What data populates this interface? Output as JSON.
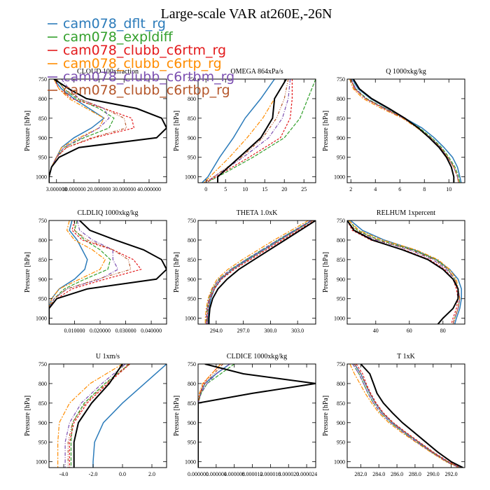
{
  "title": "Large-scale VAR at260E,-26N",
  "series": [
    {
      "name": "cam078_dflt_rg",
      "color": "#2b7bba"
    },
    {
      "name": "cam078_expldiff",
      "color": "#33a02c"
    },
    {
      "name": "cam078_clubb_c6rtm_rg",
      "color": "#e31a1c"
    },
    {
      "name": "cam078_clubb_c6rtp_rg",
      "color": "#ff8c00"
    },
    {
      "name": "cam078_clubb_c6rtbm_rg",
      "color": "#7b4fb0"
    },
    {
      "name": "cam078_clubb_c6rtbp_rg",
      "color": "#b5562a"
    },
    {
      "name": "",
      "color": "#000000"
    }
  ],
  "chart_data": [
    {
      "type": "line",
      "title": "CLOUD 100xfraction",
      "ylabel": "Pressure [hPa]",
      "xlim": [
        0.0,
        0.47
      ],
      "ylim": [
        1015,
        750
      ],
      "xticks": [
        0.03,
        0.1,
        0.2,
        0.3,
        0.4
      ],
      "xticklabels": [
        "3.000000",
        "10.000000",
        "20.000000",
        "30.000000",
        "40.000000"
      ],
      "yticks": [
        750,
        800,
        850,
        900,
        950,
        1000
      ],
      "p": [
        750,
        775,
        800,
        825,
        850,
        875,
        900,
        925,
        950,
        975,
        1000,
        1015
      ],
      "series": [
        [
          0.02,
          0.05,
          0.1,
          0.16,
          0.22,
          0.17,
          0.1,
          0.05,
          0.03,
          0.01,
          0.0,
          0.0
        ],
        [
          0.03,
          0.06,
          0.11,
          0.2,
          0.26,
          0.24,
          0.14,
          0.06,
          0.03,
          0.01,
          0.0,
          0.0
        ],
        [
          0.02,
          0.04,
          0.09,
          0.22,
          0.33,
          0.34,
          0.18,
          0.07,
          0.03,
          0.01,
          0.0,
          0.0
        ],
        [
          0.02,
          0.04,
          0.08,
          0.15,
          0.22,
          0.2,
          0.12,
          0.05,
          0.03,
          0.01,
          0.0,
          0.0
        ],
        [
          0.05,
          0.08,
          0.12,
          0.22,
          0.24,
          0.2,
          0.13,
          0.06,
          0.03,
          0.01,
          0.0,
          0.0
        ],
        [
          0.03,
          0.06,
          0.12,
          0.22,
          0.3,
          0.31,
          0.17,
          0.07,
          0.03,
          0.01,
          0.0,
          0.0
        ],
        [
          0.02,
          0.08,
          0.15,
          0.35,
          0.45,
          0.47,
          0.43,
          0.12,
          0.04,
          0.01,
          0.0,
          0.0
        ]
      ]
    },
    {
      "type": "line",
      "title": "OMEGA  864xPa/s",
      "ylabel": "Pressure [hPa]",
      "xlim": [
        -2,
        28
      ],
      "ylim": [
        1015,
        750
      ],
      "xticks": [
        0,
        5,
        10,
        15,
        20,
        25
      ],
      "xticklabels": [
        "0",
        "5",
        "10",
        "15",
        "20",
        "25"
      ],
      "yticks": [
        750,
        800,
        850,
        900,
        950,
        1000
      ],
      "p": [
        750,
        800,
        850,
        900,
        950,
        1000,
        1015
      ],
      "series": [
        [
          17.5,
          14.0,
          10.0,
          7.0,
          3.5,
          0.5,
          -1.0
        ],
        [
          28.0,
          26.0,
          24.0,
          20.0,
          12.0,
          3.0,
          0.0
        ],
        [
          22.0,
          22.0,
          21.5,
          19.0,
          11.0,
          2.5,
          0.0
        ],
        [
          20.5,
          17.5,
          14.5,
          10.5,
          6.0,
          1.0,
          -0.5
        ],
        [
          21.5,
          21.0,
          19.5,
          16.0,
          9.5,
          2.0,
          0.0
        ],
        [
          21.0,
          20.0,
          18.0,
          14.5,
          9.0,
          2.0,
          -0.5
        ],
        [
          20.5,
          17.5,
          17.0,
          14.0,
          8.5,
          3.0,
          3.0
        ]
      ]
    },
    {
      "type": "line",
      "title": "Q  1000xkg/kg",
      "ylabel": "Pressure [hPa]",
      "xlim": [
        1.7,
        11.3
      ],
      "ylim": [
        1015,
        750
      ],
      "xticks": [
        2,
        4,
        6,
        8,
        10
      ],
      "xticklabels": [
        "2",
        "4",
        "6",
        "8",
        "10"
      ],
      "yticks": [
        750,
        800,
        850,
        900,
        950,
        1000
      ],
      "p": [
        750,
        775,
        800,
        825,
        850,
        875,
        900,
        925,
        950,
        975,
        1000,
        1015
      ],
      "series": [
        [
          2.1,
          2.6,
          3.6,
          5.0,
          6.4,
          7.8,
          8.8,
          9.6,
          10.3,
          10.7,
          10.9,
          11.0
        ],
        [
          2.0,
          2.4,
          3.3,
          4.8,
          6.4,
          7.6,
          8.6,
          9.4,
          10.0,
          10.5,
          10.8,
          10.9
        ],
        [
          2.0,
          2.3,
          3.2,
          4.7,
          6.3,
          7.5,
          8.5,
          9.3,
          9.9,
          10.4,
          10.7,
          10.8
        ],
        [
          1.9,
          2.2,
          3.0,
          4.5,
          6.2,
          7.4,
          8.4,
          9.2,
          9.9,
          10.4,
          10.7,
          10.8
        ],
        [
          2.0,
          2.4,
          3.2,
          4.7,
          6.3,
          7.5,
          8.5,
          9.3,
          9.9,
          10.4,
          10.7,
          10.8
        ],
        [
          2.0,
          2.3,
          3.2,
          4.8,
          6.3,
          7.5,
          8.5,
          9.3,
          9.9,
          10.4,
          10.7,
          10.8
        ],
        [
          2.2,
          2.7,
          3.7,
          5.1,
          6.4,
          7.5,
          8.4,
          9.2,
          9.8,
          10.2,
          10.4,
          10.4
        ]
      ]
    },
    {
      "type": "line",
      "title": "CLDLIQ  1000xkg/kg",
      "ylabel": "Pressure [hPa]",
      "xlim": [
        0.0,
        0.046
      ],
      "ylim": [
        1015,
        750
      ],
      "xticks": [
        0.01,
        0.02,
        0.03,
        0.04
      ],
      "xticklabels": [
        "0.010000",
        "0.020000",
        "0.030000",
        "0.040000"
      ],
      "yticks": [
        750,
        800,
        850,
        900,
        950,
        1000
      ],
      "p": [
        750,
        775,
        800,
        825,
        850,
        875,
        900,
        925,
        950,
        975,
        1000,
        1015
      ],
      "series": [
        [
          0.009,
          0.008,
          0.011,
          0.013,
          0.015,
          0.014,
          0.01,
          0.004,
          0.001,
          0.0,
          0.0,
          0.0
        ],
        [
          0.011,
          0.01,
          0.014,
          0.02,
          0.024,
          0.023,
          0.014,
          0.006,
          0.002,
          0.0,
          0.0,
          0.0
        ],
        [
          0.01,
          0.009,
          0.013,
          0.025,
          0.033,
          0.036,
          0.022,
          0.009,
          0.003,
          0.0,
          0.0,
          0.0
        ],
        [
          0.008,
          0.007,
          0.01,
          0.017,
          0.022,
          0.02,
          0.012,
          0.004,
          0.001,
          0.0,
          0.0,
          0.0
        ],
        [
          0.011,
          0.012,
          0.017,
          0.025,
          0.025,
          0.027,
          0.02,
          0.007,
          0.002,
          0.0,
          0.0,
          0.0
        ],
        [
          0.01,
          0.01,
          0.015,
          0.025,
          0.031,
          0.032,
          0.019,
          0.007,
          0.002,
          0.0,
          0.0,
          0.0
        ],
        [
          0.012,
          0.016,
          0.026,
          0.037,
          0.044,
          0.046,
          0.042,
          0.015,
          0.003,
          0.0,
          0.0,
          0.0
        ]
      ]
    },
    {
      "type": "line",
      "title": "THETA  1.0xK",
      "ylabel": "Pressure [hPa]",
      "xlim": [
        292.0,
        305.0
      ],
      "ylim": [
        1015,
        750
      ],
      "xticks": [
        294.0,
        297.0,
        300.0,
        303.0
      ],
      "xticklabels": [
        "294.0",
        "297.0",
        "300.0",
        "303.0"
      ],
      "yticks": [
        750,
        800,
        850,
        900,
        950,
        1000
      ],
      "p": [
        750,
        800,
        850,
        875,
        900,
        925,
        950,
        975,
        1000,
        1015
      ],
      "series": [
        [
          304.6,
          301.0,
          297.5,
          295.8,
          294.5,
          293.8,
          293.4,
          293.2,
          293.1,
          293.1
        ],
        [
          304.5,
          300.8,
          297.3,
          295.6,
          294.3,
          293.6,
          293.2,
          293.0,
          292.9,
          292.9
        ],
        [
          304.9,
          301.3,
          297.8,
          296.0,
          294.6,
          293.8,
          293.3,
          293.1,
          293.0,
          293.0
        ],
        [
          304.2,
          300.4,
          296.9,
          295.3,
          294.1,
          293.5,
          293.1,
          292.9,
          292.8,
          292.8
        ],
        [
          304.5,
          300.8,
          297.3,
          295.6,
          294.3,
          293.6,
          293.2,
          293.0,
          292.9,
          292.9
        ],
        [
          304.7,
          301.1,
          297.6,
          295.8,
          294.4,
          293.7,
          293.3,
          293.1,
          293.0,
          293.0
        ],
        [
          305.0,
          301.6,
          298.2,
          296.5,
          295.2,
          294.2,
          293.6,
          293.3,
          293.2,
          293.2
        ]
      ]
    },
    {
      "type": "line",
      "title": "RELHUM  1xpercent",
      "ylabel": "Pressure [hPa]",
      "xlim": [
        23,
        93
      ],
      "ylim": [
        1015,
        750
      ],
      "xticks": [
        40,
        60,
        80
      ],
      "xticklabels": [
        "40",
        "60",
        "80"
      ],
      "yticks": [
        750,
        800,
        850,
        900,
        950,
        1000
      ],
      "p": [
        750,
        775,
        800,
        825,
        850,
        875,
        900,
        925,
        950,
        975,
        1000,
        1015
      ],
      "series": [
        [
          25,
          32,
          45,
          63,
          76,
          84,
          89,
          91,
          91,
          90,
          88,
          87
        ],
        [
          24,
          29,
          42,
          62,
          76,
          83,
          87,
          89,
          90,
          89,
          87,
          86
        ],
        [
          23,
          26,
          37,
          57,
          72,
          81,
          86,
          88,
          89,
          88,
          86,
          85
        ],
        [
          24,
          30,
          44,
          64,
          77,
          84,
          88,
          89,
          90,
          89,
          87,
          86
        ],
        [
          23,
          27,
          40,
          60,
          74,
          82,
          87,
          89,
          90,
          89,
          87,
          86
        ],
        [
          23,
          28,
          41,
          61,
          75,
          83,
          87,
          89,
          90,
          89,
          87,
          86
        ],
        [
          23,
          27,
          38,
          56,
          71,
          80,
          86,
          89,
          89,
          86,
          80,
          77
        ]
      ]
    },
    {
      "type": "line",
      "title": "U  1xm/s",
      "ylabel": "Pressure [hPa]",
      "xlim": [
        -5.0,
        3.0
      ],
      "ylim": [
        1015,
        750
      ],
      "xticks": [
        -4.0,
        -2.0,
        0.0,
        2.0
      ],
      "xticklabels": [
        "-4.0",
        "-2.0",
        "0.0",
        "2.0"
      ],
      "yticks": [
        750,
        800,
        850,
        900,
        950,
        1000
      ],
      "p": [
        750,
        800,
        850,
        900,
        950,
        1000,
        1015
      ],
      "series": [
        [
          3.0,
          1.5,
          0.0,
          -1.3,
          -1.9,
          -2.0,
          -2.0
        ],
        [
          0.5,
          -1.2,
          -2.6,
          -3.4,
          -3.5,
          -3.5,
          -3.5
        ],
        [
          0.5,
          -1.0,
          -2.4,
          -3.3,
          -3.6,
          -3.6,
          -3.6
        ],
        [
          0.0,
          -2.2,
          -3.6,
          -4.3,
          -4.4,
          -4.4,
          -4.4
        ],
        [
          0.2,
          -1.4,
          -2.8,
          -3.6,
          -3.9,
          -3.9,
          -3.9
        ],
        [
          0.4,
          -1.1,
          -2.5,
          -3.4,
          -3.7,
          -3.7,
          -3.7
        ],
        [
          0.0,
          -0.9,
          -2.1,
          -3.0,
          -3.3,
          -3.3,
          -3.3
        ]
      ]
    },
    {
      "type": "line",
      "title": "CLDICE  1000xkg/kg",
      "ylabel": "Pressure [hPa]",
      "xlim": [
        0.0,
        2.6e-05
      ],
      "ylim": [
        1015,
        750
      ],
      "xticks": [
        0.0,
        4e-06,
        8e-06,
        1.2e-05,
        1.6e-05,
        2e-05,
        2.4e-05
      ],
      "xticklabels": [
        "0.000000",
        "0.000004",
        "0.000008",
        "0.000012",
        "0.000016",
        "0.000020",
        "0.000024"
      ],
      "yticks": [
        750,
        800,
        850,
        900,
        950,
        1000
      ],
      "p": [
        750,
        775,
        800,
        825,
        850,
        900,
        1015
      ],
      "series": [
        [
          7e-06,
          4e-06,
          1.5e-06,
          5e-07,
          0.0,
          0.0,
          0.0
        ],
        [
          8e-06,
          5e-06,
          2e-06,
          7e-07,
          0.0,
          0.0,
          0.0
        ],
        [
          5e-06,
          3e-06,
          1.2e-06,
          4e-07,
          0.0,
          0.0,
          0.0
        ],
        [
          5e-06,
          3e-06,
          1e-06,
          3e-07,
          0.0,
          0.0,
          0.0
        ],
        [
          7e-06,
          4e-06,
          2e-06,
          6e-07,
          0.0,
          0.0,
          0.0
        ],
        [
          5.5e-06,
          3.5e-06,
          1.5e-06,
          5e-07,
          0.0,
          0.0,
          0.0
        ],
        [
          1.5e-06,
          1e-05,
          2.6e-05,
          1.2e-05,
          0.0,
          0.0,
          0.0
        ]
      ]
    },
    {
      "type": "line",
      "title": "T  1xK",
      "ylabel": "Pressure [hPa]",
      "xlim": [
        280.5,
        293.5
      ],
      "ylim": [
        1015,
        750
      ],
      "xticks": [
        282.0,
        284.0,
        286.0,
        288.0,
        290.0,
        292.0
      ],
      "xticklabels": [
        "282.0",
        "284.0",
        "286.0",
        "288.0",
        "290.0",
        "292.0"
      ],
      "yticks": [
        750,
        800,
        850,
        900,
        950,
        1000
      ],
      "p": [
        750,
        775,
        800,
        825,
        850,
        875,
        900,
        925,
        950,
        975,
        1000,
        1015
      ],
      "series": [
        [
          281.3,
          282.0,
          282.5,
          283.0,
          283.6,
          284.4,
          285.5,
          286.9,
          288.4,
          289.9,
          291.6,
          293.0
        ],
        [
          281.1,
          281.8,
          282.3,
          282.8,
          283.4,
          284.2,
          285.3,
          286.7,
          288.2,
          289.8,
          291.5,
          292.9
        ],
        [
          281.5,
          282.2,
          282.6,
          283.1,
          283.7,
          284.5,
          285.6,
          287.0,
          288.5,
          290.0,
          291.7,
          293.1
        ],
        [
          280.8,
          281.3,
          281.9,
          282.5,
          283.2,
          284.0,
          285.1,
          286.5,
          288.1,
          289.7,
          291.4,
          292.8
        ],
        [
          281.1,
          281.8,
          282.3,
          282.8,
          283.4,
          284.2,
          285.3,
          286.7,
          288.2,
          289.8,
          291.5,
          292.9
        ],
        [
          281.3,
          282.0,
          282.5,
          283.0,
          283.6,
          284.4,
          285.5,
          286.9,
          288.4,
          289.9,
          291.6,
          293.0
        ],
        [
          282.0,
          283.0,
          283.4,
          283.8,
          284.5,
          285.5,
          286.6,
          287.9,
          289.2,
          290.5,
          292.0,
          293.3
        ]
      ]
    }
  ]
}
